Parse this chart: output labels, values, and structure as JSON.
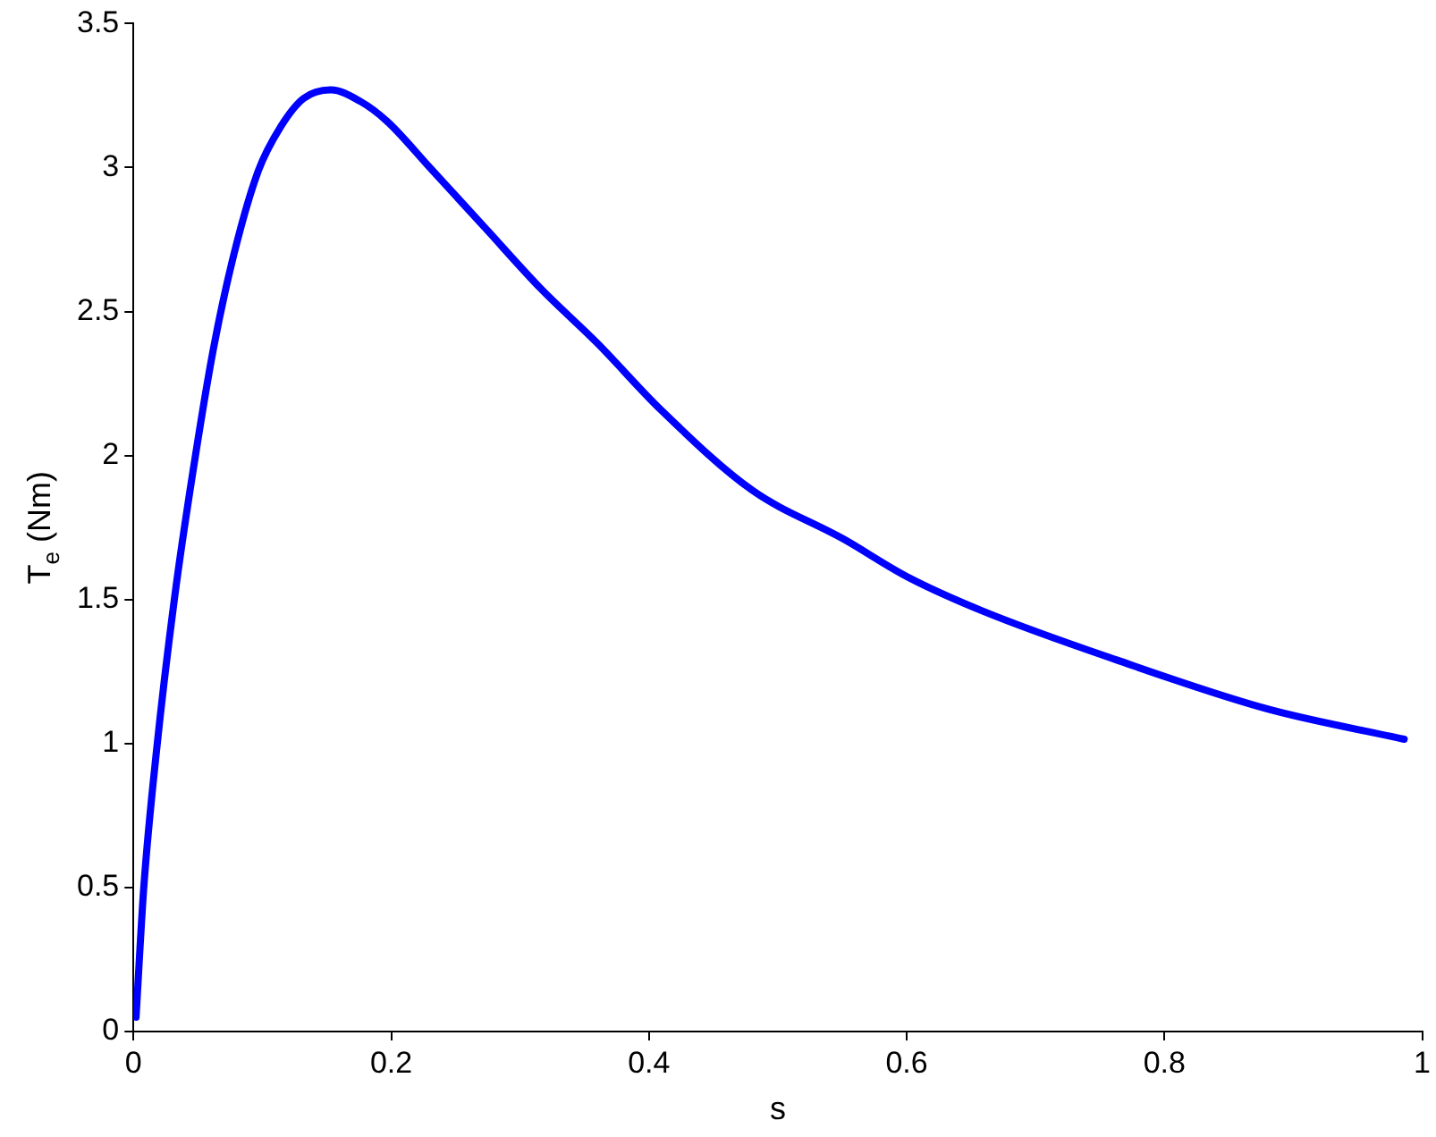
{
  "chart_data": {
    "type": "line",
    "xlabel": "s",
    "ylabel": "T$_{e}$ (Nm)",
    "x": [
      0.002,
      0.008,
      0.018,
      0.032,
      0.046,
      0.062,
      0.078,
      0.097,
      0.114,
      0.132,
      0.153,
      0.176,
      0.197,
      0.23,
      0.273,
      0.316,
      0.36,
      0.409,
      0.48,
      0.551,
      0.6,
      0.659,
      0.763,
      0.88,
      0.986
    ],
    "series": [
      {
        "color": "#0000ff",
        "values": [
          0.05,
          0.5,
          0.98,
          1.51,
          1.94,
          2.37,
          2.7,
          2.99,
          3.14,
          3.24,
          3.27,
          3.23,
          3.16,
          3.0,
          2.79,
          2.58,
          2.39,
          2.16,
          1.88,
          1.71,
          1.58,
          1.46,
          1.29,
          1.12,
          1.015
        ]
      }
    ],
    "xlim": [
      0,
      1
    ],
    "xticks": [
      0,
      0.2,
      0.4,
      0.6,
      0.8,
      1
    ],
    "ylim": [
      0,
      3.5
    ],
    "yticks": [
      0,
      0.5,
      1,
      1.5,
      2,
      2.5,
      3,
      3.5
    ],
    "legend": false,
    "marker": "none"
  }
}
